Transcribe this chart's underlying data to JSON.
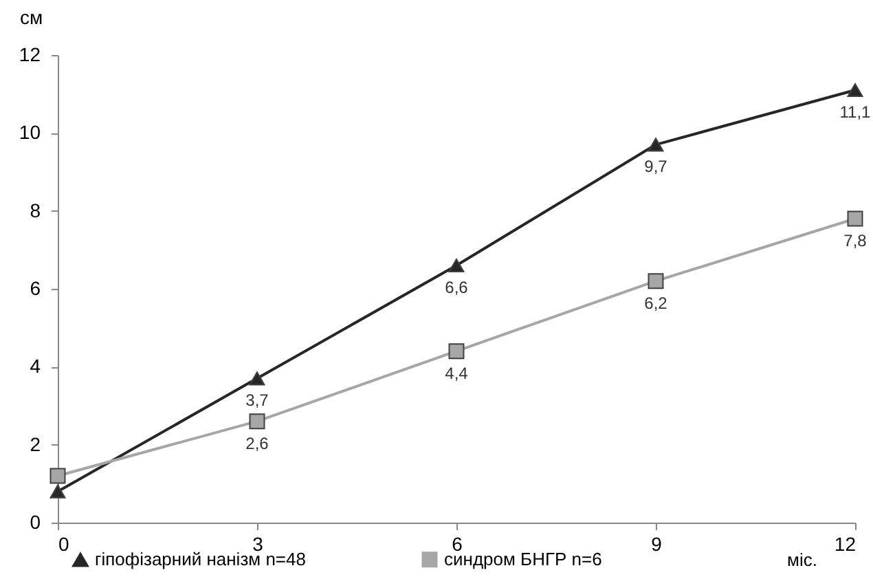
{
  "chart_data": {
    "type": "line",
    "xlabel": "міс.",
    "ylabel": "см",
    "x": [
      0,
      3,
      6,
      9,
      12
    ],
    "xlim": [
      0,
      12
    ],
    "xticks": [
      0,
      3,
      6,
      9,
      12
    ],
    "ylim": [
      0,
      12
    ],
    "yticks": [
      0,
      2,
      4,
      6,
      8,
      10,
      12
    ],
    "grid": false,
    "legend": "bottom",
    "line_style": "solid",
    "series": [
      {
        "name": "гіпофізарний нанізм n=48",
        "color": "#262626",
        "marker": "triangle",
        "values": [
          0.8,
          3.7,
          6.6,
          9.7,
          11.1
        ],
        "value_labels": [
          null,
          "3,7",
          "6,6",
          "9,7",
          "11,1"
        ]
      },
      {
        "name": "синдром БНГР n=6",
        "color": "#a6a6a6",
        "marker": "square",
        "values": [
          1.2,
          2.6,
          4.4,
          6.2,
          7.8
        ],
        "value_labels": [
          null,
          "2,6",
          "4,4",
          "6,2",
          "7,8"
        ]
      }
    ]
  }
}
